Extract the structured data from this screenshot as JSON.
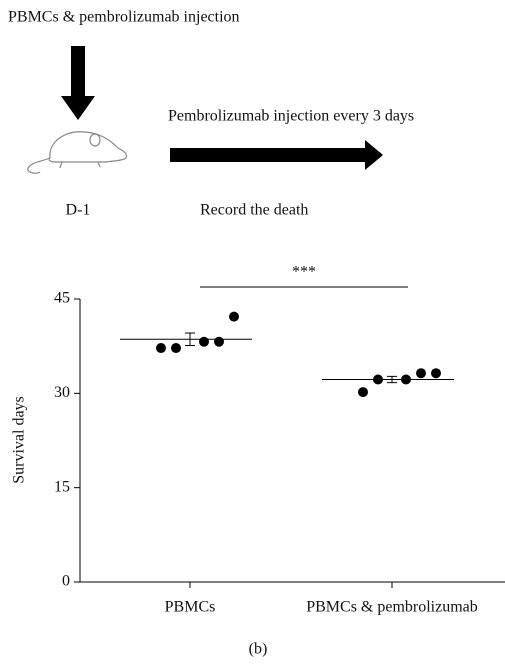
{
  "diagram": {
    "top_label": "PBMCs & pembrolizumab injection",
    "right_label": "Pembrolizumab injection every 3 days",
    "day_label": "D-1",
    "record_label": "Record the death"
  },
  "chart_data": {
    "type": "scatter",
    "y_label": "Survival days",
    "annotation": "***",
    "caption": "(b)",
    "categories": [
      "PBMCs",
      "PBMCs & pembrolizumab"
    ],
    "points": [
      [
        37.2,
        37.2,
        38.2,
        38.2,
        42.2
      ],
      [
        30.2,
        32.2,
        32.2,
        33.2,
        33.2
      ]
    ],
    "means": [
      38.6,
      32.2
    ],
    "errors": [
      1.0,
      0.5
    ],
    "color": "#000000",
    "ylim": [
      0,
      45
    ],
    "yticks": [
      0,
      15,
      30,
      45
    ]
  }
}
